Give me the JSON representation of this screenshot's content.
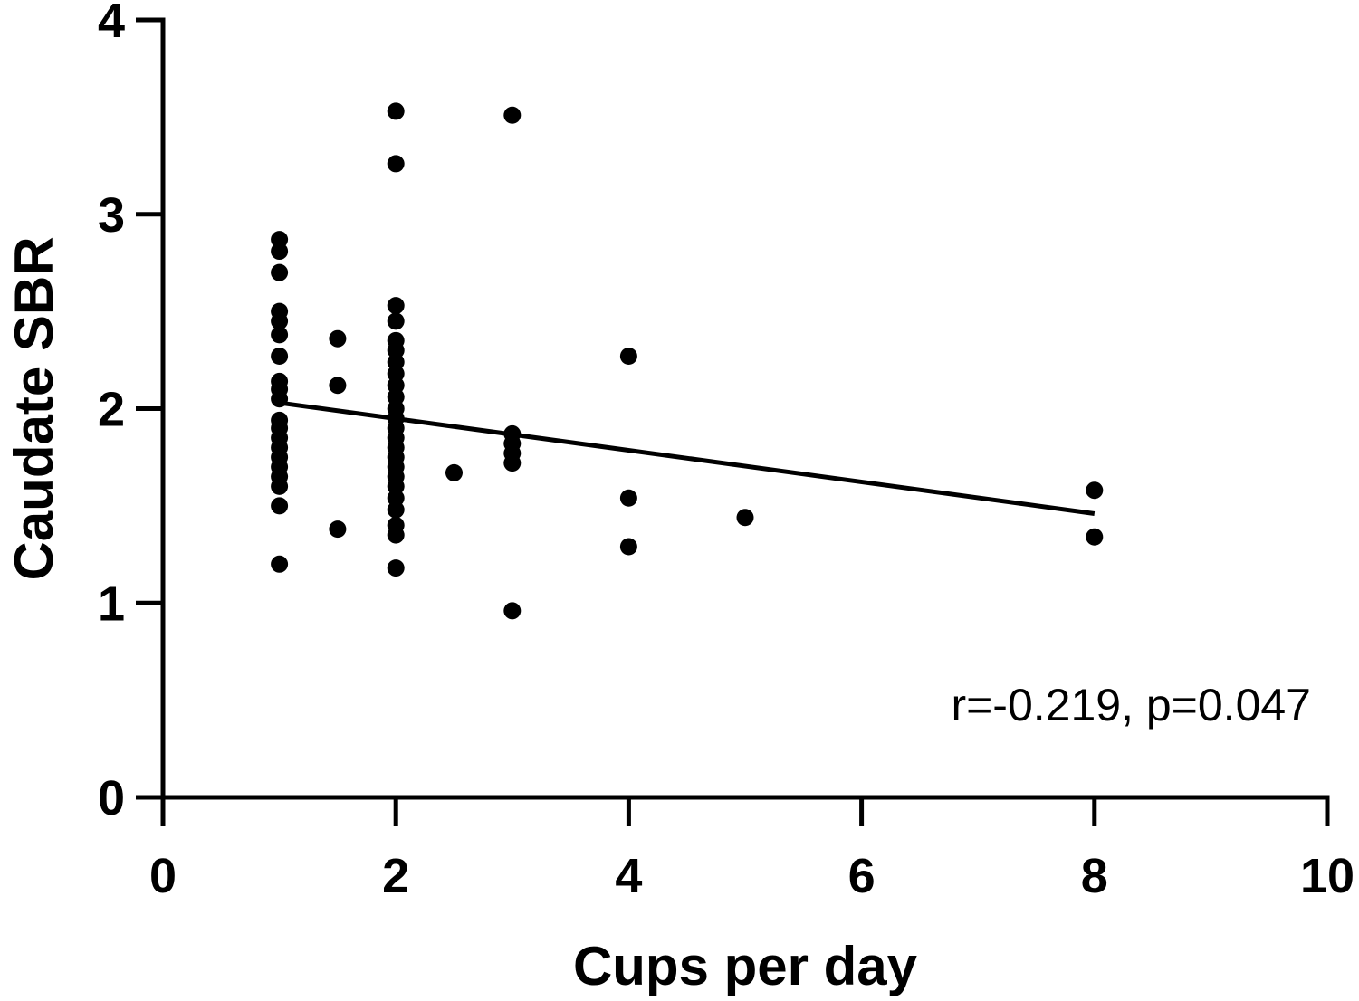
{
  "chart_data": {
    "type": "scatter",
    "title": "",
    "xlabel": "Cups per day",
    "ylabel": "Caudate SBR",
    "xlim": [
      0,
      10
    ],
    "ylim": [
      0,
      4
    ],
    "xticks": [
      0,
      2,
      4,
      6,
      8,
      10
    ],
    "yticks": [
      0,
      1,
      2,
      3,
      4
    ],
    "xtick_labels": [
      "0",
      "2",
      "4",
      "6",
      "8",
      "10"
    ],
    "ytick_labels": [
      "0",
      "1",
      "2",
      "3",
      "4"
    ],
    "grid": false,
    "marker_color": "#000000",
    "annotation": "r=-0.219, p=0.047",
    "regression": {
      "x": [
        1,
        8
      ],
      "y": [
        2.03,
        1.46
      ]
    },
    "points": [
      {
        "x": 1,
        "y": 2.87
      },
      {
        "x": 1,
        "y": 2.81
      },
      {
        "x": 1,
        "y": 2.7
      },
      {
        "x": 1,
        "y": 2.5
      },
      {
        "x": 1,
        "y": 2.45
      },
      {
        "x": 1,
        "y": 2.38
      },
      {
        "x": 1,
        "y": 2.27
      },
      {
        "x": 1,
        "y": 2.14
      },
      {
        "x": 1,
        "y": 2.1
      },
      {
        "x": 1,
        "y": 2.05
      },
      {
        "x": 1,
        "y": 1.94
      },
      {
        "x": 1,
        "y": 1.9
      },
      {
        "x": 1,
        "y": 1.85
      },
      {
        "x": 1,
        "y": 1.8
      },
      {
        "x": 1,
        "y": 1.75
      },
      {
        "x": 1,
        "y": 1.7
      },
      {
        "x": 1,
        "y": 1.65
      },
      {
        "x": 1,
        "y": 1.6
      },
      {
        "x": 1,
        "y": 1.5
      },
      {
        "x": 1,
        "y": 1.2
      },
      {
        "x": 1.5,
        "y": 2.36
      },
      {
        "x": 1.5,
        "y": 2.12
      },
      {
        "x": 1.5,
        "y": 1.38
      },
      {
        "x": 2,
        "y": 3.53
      },
      {
        "x": 2,
        "y": 3.26
      },
      {
        "x": 2,
        "y": 2.53
      },
      {
        "x": 2,
        "y": 2.45
      },
      {
        "x": 2,
        "y": 2.35
      },
      {
        "x": 2,
        "y": 2.3
      },
      {
        "x": 2,
        "y": 2.24
      },
      {
        "x": 2,
        "y": 2.18
      },
      {
        "x": 2,
        "y": 2.12
      },
      {
        "x": 2,
        "y": 2.06
      },
      {
        "x": 2,
        "y": 2.0
      },
      {
        "x": 2,
        "y": 1.95
      },
      {
        "x": 2,
        "y": 1.9
      },
      {
        "x": 2,
        "y": 1.85
      },
      {
        "x": 2,
        "y": 1.8
      },
      {
        "x": 2,
        "y": 1.75
      },
      {
        "x": 2,
        "y": 1.7
      },
      {
        "x": 2,
        "y": 1.65
      },
      {
        "x": 2,
        "y": 1.6
      },
      {
        "x": 2,
        "y": 1.54
      },
      {
        "x": 2,
        "y": 1.48
      },
      {
        "x": 2,
        "y": 1.4
      },
      {
        "x": 2,
        "y": 1.35
      },
      {
        "x": 2,
        "y": 1.18
      },
      {
        "x": 2.5,
        "y": 1.67
      },
      {
        "x": 3,
        "y": 3.51
      },
      {
        "x": 3,
        "y": 1.87
      },
      {
        "x": 3,
        "y": 1.82
      },
      {
        "x": 3,
        "y": 1.77
      },
      {
        "x": 3,
        "y": 1.72
      },
      {
        "x": 3,
        "y": 0.96
      },
      {
        "x": 4,
        "y": 2.27
      },
      {
        "x": 4,
        "y": 1.54
      },
      {
        "x": 4,
        "y": 1.29
      },
      {
        "x": 5,
        "y": 1.44
      },
      {
        "x": 8,
        "y": 1.58
      },
      {
        "x": 8,
        "y": 1.34
      }
    ]
  }
}
